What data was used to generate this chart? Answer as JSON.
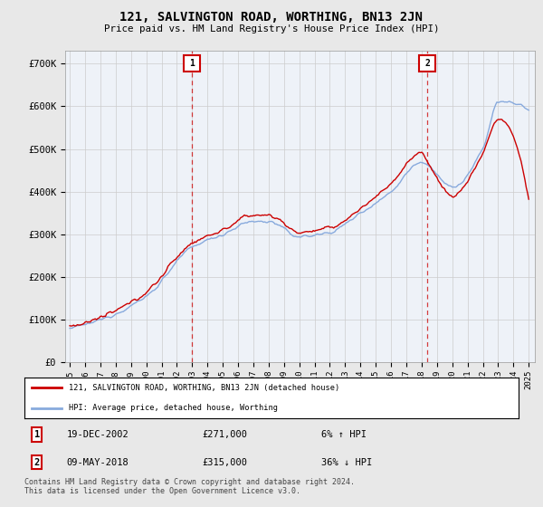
{
  "title": "121, SALVINGTON ROAD, WORTHING, BN13 2JN",
  "subtitle": "Price paid vs. HM Land Registry's House Price Index (HPI)",
  "ylim": [
    0,
    730000
  ],
  "sale1_x": 2002.96,
  "sale1_price": 271000,
  "sale1_label": "6% ↑ HPI",
  "sale1_date": "19-DEC-2002",
  "sale2_x": 2018.36,
  "sale2_price": 315000,
  "sale2_label": "36% ↓ HPI",
  "sale2_date": "09-MAY-2018",
  "legend_house": "121, SALVINGTON ROAD, WORTHING, BN13 2JN (detached house)",
  "legend_hpi": "HPI: Average price, detached house, Worthing",
  "footnote": "Contains HM Land Registry data © Crown copyright and database right 2024.\nThis data is licensed under the Open Government Licence v3.0.",
  "house_color": "#cc0000",
  "hpi_color": "#88aadd",
  "bg_color": "#e8e8e8",
  "plot_bg": "#eef2f8",
  "grid_color": "#cccccc"
}
